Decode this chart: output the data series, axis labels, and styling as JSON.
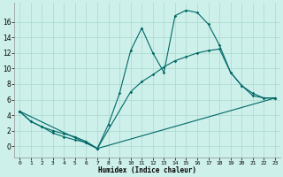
{
  "xlabel": "Humidex (Indice chaleur)",
  "bg_color": "#cef0ea",
  "grid_color": "#a8d8d0",
  "line_color": "#006868",
  "xlim": [
    -0.5,
    23.5
  ],
  "ylim": [
    -1.5,
    18.5
  ],
  "xticks": [
    0,
    1,
    2,
    3,
    4,
    5,
    6,
    7,
    8,
    9,
    10,
    11,
    12,
    13,
    14,
    15,
    16,
    17,
    18,
    19,
    20,
    21,
    22,
    23
  ],
  "yticks": [
    0,
    2,
    4,
    6,
    8,
    10,
    12,
    14,
    16
  ],
  "line1_x": [
    0,
    1,
    2,
    3,
    4,
    5,
    6,
    7,
    8,
    9,
    10,
    11,
    12,
    13,
    14,
    15,
    16,
    17,
    18,
    19,
    20,
    21,
    22,
    23
  ],
  "line1_y": [
    4.5,
    3.2,
    2.5,
    2.0,
    1.6,
    1.2,
    0.6,
    -0.3,
    2.8,
    6.8,
    12.3,
    15.2,
    12.0,
    9.5,
    16.8,
    17.5,
    17.2,
    15.7,
    13.0,
    9.5,
    7.8,
    6.5,
    6.2,
    6.2
  ],
  "line2_x": [
    0,
    1,
    2,
    3,
    4,
    5,
    6,
    7,
    23
  ],
  "line2_y": [
    4.5,
    3.2,
    2.5,
    1.7,
    1.2,
    0.8,
    0.5,
    -0.3,
    6.2
  ],
  "line3_x": [
    0,
    7,
    10,
    11,
    12,
    13,
    14,
    15,
    16,
    17,
    18,
    19,
    20,
    21,
    22,
    23
  ],
  "line3_y": [
    4.5,
    -0.3,
    7.0,
    8.3,
    9.2,
    10.2,
    11.0,
    11.5,
    12.0,
    12.3,
    12.5,
    9.5,
    7.8,
    6.8,
    6.2,
    6.2
  ]
}
